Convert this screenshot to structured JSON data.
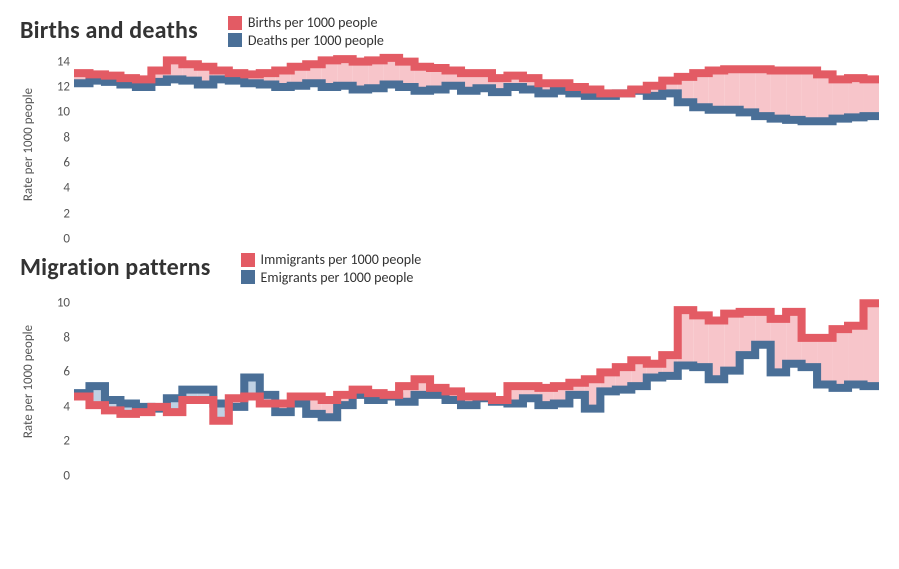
{
  "colors": {
    "red": "#e35b64",
    "red_fill": "#f7c5ca",
    "blue": "#4a6f97",
    "blue_fill": "#bfd1e3",
    "text": "#333333",
    "tick": "#555555",
    "bg": "#ffffff"
  },
  "chart1": {
    "type": "stepped-area",
    "title": "Births and deaths",
    "y_label": "Rate per 1000 people",
    "legend": [
      {
        "label": "Births per 1000 people",
        "color_key": "red"
      },
      {
        "label": "Deaths per 1000 people",
        "color_key": "blue"
      }
    ],
    "y_ticks": [
      0,
      2,
      4,
      6,
      8,
      10,
      12,
      14
    ],
    "ylim": [
      0,
      15
    ],
    "n_points": 52,
    "series": {
      "births": [
        13.1,
        13.0,
        12.9,
        12.7,
        12.6,
        13.3,
        14.1,
        13.8,
        13.6,
        13.3,
        13.1,
        13.0,
        13.1,
        13.3,
        13.6,
        13.8,
        14.1,
        14.2,
        14.0,
        14.1,
        14.3,
        14.0,
        13.6,
        13.5,
        13.3,
        13.1,
        13.1,
        12.7,
        12.9,
        12.7,
        12.3,
        12.3,
        12.0,
        11.8,
        11.5,
        11.5,
        11.8,
        12.1,
        12.5,
        12.8,
        13.1,
        13.3,
        13.4,
        13.4,
        13.4,
        13.3,
        13.3,
        13.3,
        13.0,
        12.6,
        12.7,
        12.6
      ],
      "deaths": [
        12.3,
        12.5,
        12.4,
        12.2,
        12.0,
        12.4,
        12.6,
        12.5,
        12.2,
        12.6,
        12.5,
        12.3,
        12.2,
        12.0,
        12.1,
        12.3,
        12.0,
        12.1,
        11.8,
        11.9,
        12.2,
        12.0,
        11.7,
        11.8,
        12.1,
        11.7,
        11.9,
        11.6,
        12.0,
        11.8,
        11.5,
        11.7,
        11.5,
        11.3,
        11.3,
        11.5,
        11.7,
        11.3,
        11.5,
        10.8,
        10.4,
        10.2,
        10.2,
        10.0,
        9.7,
        9.5,
        9.4,
        9.3,
        9.3,
        9.5,
        9.6,
        9.7
      ]
    },
    "step_colors": {
      "upper": "red",
      "lower": "blue",
      "fill_upper": "red_fill",
      "fill_lower": "blue_fill"
    },
    "title_fontsize": 24,
    "tick_fontsize": 13,
    "legend_fontsize": 14
  },
  "chart2": {
    "type": "stepped-area",
    "title": "Migration patterns",
    "y_label": "Rate per 1000 people",
    "legend": [
      {
        "label": "Immigrants per 1000 people",
        "color_key": "red"
      },
      {
        "label": "Emigrants per 1000 people",
        "color_key": "blue"
      }
    ],
    "y_ticks": [
      0,
      2,
      4,
      6,
      8,
      10
    ],
    "ylim": [
      0,
      11
    ],
    "n_points": 52,
    "series": {
      "immigrants": [
        4.6,
        4.1,
        3.8,
        3.6,
        3.7,
        4.0,
        3.7,
        4.4,
        4.4,
        3.2,
        4.5,
        4.6,
        4.2,
        4.2,
        4.6,
        4.6,
        4.4,
        4.7,
        5.0,
        4.8,
        4.7,
        5.2,
        5.6,
        5.1,
        4.9,
        4.6,
        4.6,
        4.4,
        5.2,
        5.2,
        5.1,
        5.2,
        5.4,
        5.6,
        6.0,
        6.3,
        6.7,
        6.5,
        7.0,
        9.6,
        9.3,
        9.0,
        9.4,
        9.5,
        9.5,
        9.1,
        9.5,
        8.0,
        8.0,
        8.5,
        8.7,
        10.0
      ],
      "emigrants": [
        4.8,
        5.2,
        4.4,
        4.2,
        4.0,
        3.9,
        4.5,
        5.0,
        5.0,
        4.2,
        4.0,
        5.7,
        4.7,
        3.7,
        4.2,
        3.6,
        3.4,
        4.1,
        4.7,
        4.4,
        4.6,
        4.3,
        4.7,
        4.7,
        4.4,
        4.1,
        4.5,
        4.3,
        4.2,
        4.5,
        4.1,
        4.2,
        4.7,
        3.9,
        4.9,
        5.0,
        5.2,
        5.7,
        5.8,
        6.4,
        6.3,
        5.6,
        6.1,
        7.0,
        7.6,
        6.0,
        6.5,
        6.3,
        5.3,
        5.1,
        5.3,
        5.2
      ]
    },
    "step_colors": {
      "upper": "red",
      "lower": "blue",
      "fill_upper": "red_fill",
      "fill_lower": "blue_fill"
    },
    "title_fontsize": 24,
    "tick_fontsize": 13,
    "legend_fontsize": 14
  }
}
